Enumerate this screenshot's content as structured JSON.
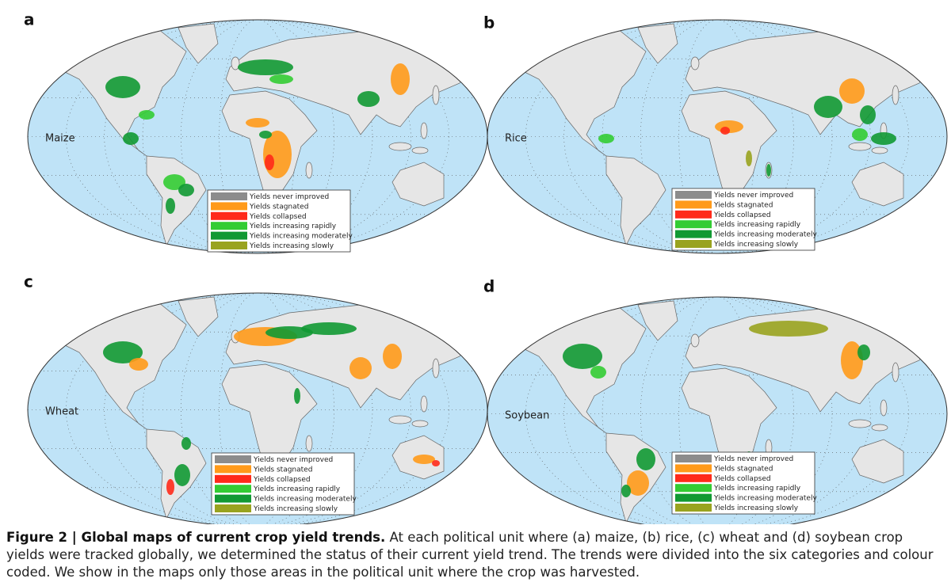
{
  "panels": [
    {
      "letter": "a",
      "crop": "Maize"
    },
    {
      "letter": "b",
      "crop": "Rice"
    },
    {
      "letter": "c",
      "crop": "Wheat"
    },
    {
      "letter": "d",
      "crop": "Soybean"
    }
  ],
  "legend": [
    {
      "label": "Yields never improved",
      "color": "#8c8c8c"
    },
    {
      "label": "Yields stagnated",
      "color": "#ff9a1a"
    },
    {
      "label": "Yields collapsed",
      "color": "#ff2a1a"
    },
    {
      "label": "Yields increasing rapidly",
      "color": "#33cc33"
    },
    {
      "label": "Yields increasing moderately",
      "color": "#119933"
    },
    {
      "label": "Yields increasing slowly",
      "color": "#99a31f"
    }
  ],
  "caption": {
    "title": "Figure 2 | Global maps of current crop yield trends.",
    "body": "At each political unit where (a) maize, (b) rice, (c) wheat and (d) soybean crop yields were tracked globally, we determined the status of their current yield trend. The trends were divided into the six categories and colour coded. We show in the maps only those areas in the political unit where the crop was harvested."
  }
}
